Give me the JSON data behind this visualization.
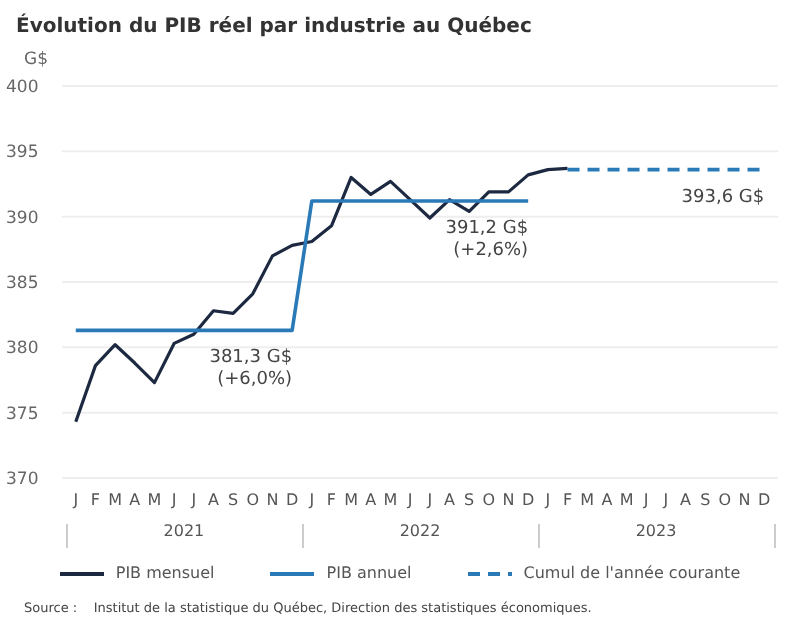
{
  "chart_data": {
    "type": "line",
    "title": "Évolution du PIB réel par industrie au Québec",
    "ylabel": "G$",
    "categories": [
      "J",
      "F",
      "M",
      "A",
      "M",
      "J",
      "J",
      "A",
      "S",
      "O",
      "N",
      "D",
      "J",
      "F",
      "M",
      "A",
      "M",
      "J",
      "J",
      "A",
      "S",
      "O",
      "N",
      "D",
      "J",
      "F",
      "M",
      "A",
      "M",
      "J",
      "J",
      "A",
      "S",
      "O",
      "N",
      "D"
    ],
    "series": [
      {
        "name": "PIB mensuel",
        "color": "#1c2940",
        "values": [
          374.3,
          378.6,
          380.2,
          378.8,
          377.3,
          380.3,
          381.0,
          382.8,
          382.6,
          384.1,
          387.0,
          387.8,
          388.1,
          389.3,
          393.0,
          391.7,
          392.7,
          391.3,
          389.9,
          391.3,
          390.4,
          391.9,
          391.9,
          393.2,
          393.6,
          393.7,
          null,
          null,
          null,
          null,
          null,
          null,
          null,
          null,
          null,
          null
        ]
      },
      {
        "name": "PIB annuel",
        "color": "#2a7ab8",
        "values": [
          381.3,
          381.3,
          381.3,
          381.3,
          381.3,
          381.3,
          381.3,
          381.3,
          381.3,
          381.3,
          381.3,
          381.3,
          391.2,
          391.2,
          391.2,
          391.2,
          391.2,
          391.2,
          391.2,
          391.2,
          391.2,
          391.2,
          391.2,
          391.2,
          null,
          null,
          null,
          null,
          null,
          null,
          null,
          null,
          null,
          null,
          null,
          null
        ],
        "value_labels": [
          null,
          null,
          null,
          null,
          null,
          null,
          null,
          null,
          null,
          null,
          null,
          "381,3 G$ (+6,0%)",
          null,
          null,
          null,
          null,
          null,
          null,
          null,
          null,
          null,
          null,
          null,
          "391,2 G$ (+2,6%)",
          null,
          null,
          null,
          null,
          null,
          null,
          null,
          null,
          null,
          null,
          null,
          null
        ]
      },
      {
        "name": "Cumul de l'année courante",
        "color": "#2a7ab8",
        "line_style": "dashed",
        "values": [
          null,
          null,
          null,
          null,
          null,
          null,
          null,
          null,
          null,
          null,
          null,
          null,
          null,
          null,
          null,
          null,
          null,
          null,
          null,
          null,
          null,
          null,
          null,
          null,
          null,
          393.6,
          393.6,
          393.6,
          393.6,
          393.6,
          393.6,
          393.6,
          393.6,
          393.6,
          393.6,
          393.6
        ],
        "value_labels": [
          null,
          null,
          null,
          null,
          null,
          null,
          null,
          null,
          null,
          null,
          null,
          null,
          null,
          null,
          null,
          null,
          null,
          null,
          null,
          null,
          null,
          null,
          null,
          null,
          null,
          null,
          null,
          null,
          null,
          null,
          null,
          null,
          null,
          null,
          null,
          "393,6 G$"
        ]
      }
    ],
    "ylim": [
      370,
      400
    ],
    "yticks": [
      370,
      375,
      380,
      385,
      390,
      395,
      400
    ],
    "grid": "y",
    "legend": "bottom",
    "marker": "none",
    "annotations": [
      "2021",
      "2022",
      "2023",
      "Source :    Institut de la statistique du Québec, Direction des statistiques économiques."
    ]
  }
}
